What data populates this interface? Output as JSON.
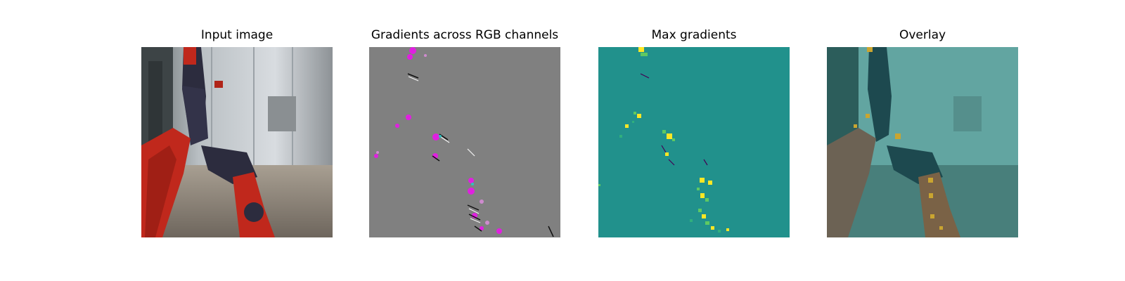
{
  "figure": {
    "panels": [
      {
        "title": "Input image"
      },
      {
        "title": "Gradients across RGB channels"
      },
      {
        "title": "Max gradients"
      },
      {
        "title": "Overlay"
      }
    ],
    "colors": {
      "gradient_background": "#808080",
      "max_gradient_background": "#21918c",
      "highlight": "#fde725",
      "robot_red": "#c0281c",
      "robot_dark": "#2c2c3e"
    }
  }
}
